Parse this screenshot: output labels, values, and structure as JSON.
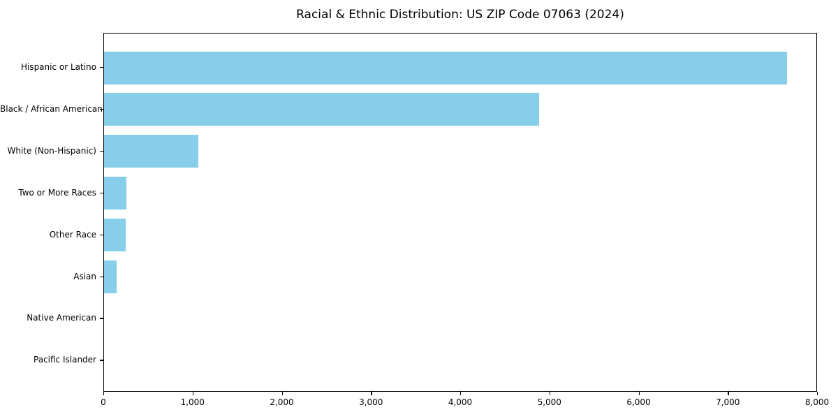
{
  "chart_data": {
    "type": "bar",
    "orientation": "horizontal",
    "title": "Racial & Ethnic Distribution: US ZIP Code 07063 (2024)",
    "categories": [
      "Hispanic or Latino",
      "Black / African American",
      "White (Non-Hispanic)",
      "Two or More Races",
      "Other Race",
      "Asian",
      "Native American",
      "Pacific Islander"
    ],
    "values": [
      7670,
      4890,
      1060,
      250,
      245,
      140,
      0,
      0
    ],
    "xlabel": "",
    "ylabel": "",
    "xlim": [
      0,
      8000
    ],
    "x_ticks": [
      0,
      1000,
      2000,
      3000,
      4000,
      5000,
      6000,
      7000,
      8000
    ],
    "x_tick_labels": [
      "0",
      "1,000",
      "2,000",
      "3,000",
      "4,000",
      "5,000",
      "6,000",
      "7,000",
      "8,000"
    ],
    "bar_color": "#87CEEB",
    "grid": false,
    "legend": "none",
    "plot_border": "#000000",
    "background": "#ffffff"
  }
}
